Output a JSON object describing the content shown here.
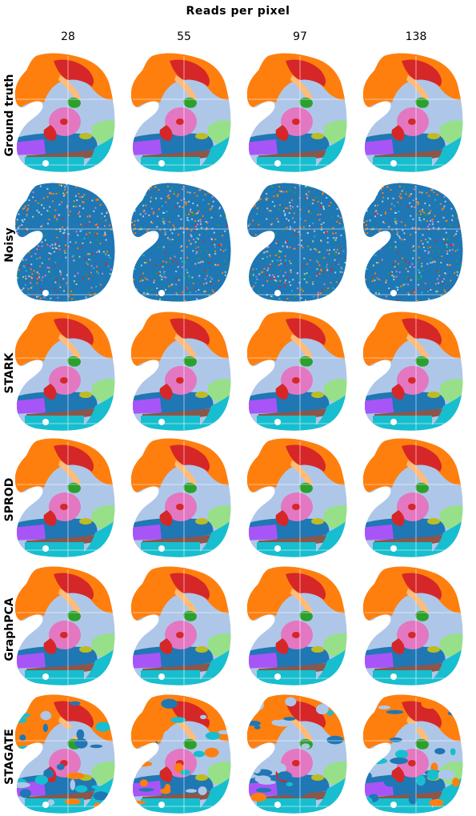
{
  "title": "Reads per pixel",
  "columns": [
    "28",
    "55",
    "97",
    "138"
  ],
  "rows": [
    "Ground truth",
    "Noisy",
    "STARK",
    "SPROD",
    "GraphPCA",
    "STAGATE"
  ],
  "colors": {
    "orange": "#ff7f0e",
    "red": "#d62728",
    "light_blue": "#aec7e8",
    "blue": "#1f77b4",
    "pink": "#e377c2",
    "green": "#2ca02c",
    "light_green": "#98df8a",
    "teal": "#17becf",
    "purple": "#a855f7",
    "brown": "#8c564b",
    "olive": "#bcbd22",
    "peach": "#ffbb78",
    "teal_green": "#2e8b7a"
  }
}
